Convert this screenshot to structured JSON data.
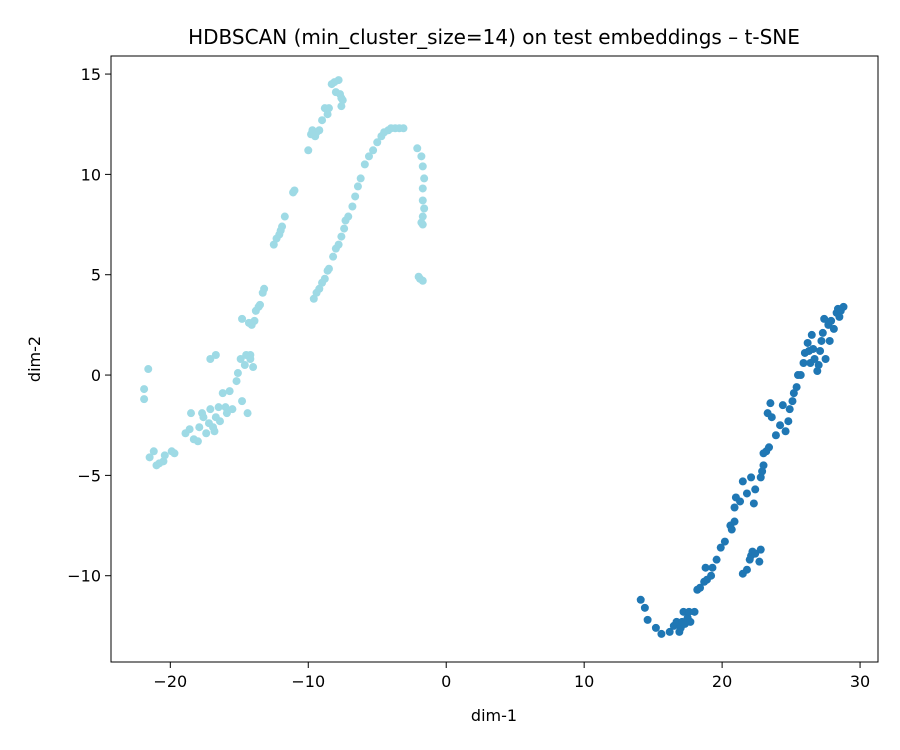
{
  "chart_data": {
    "type": "scatter",
    "title": "HDBSCAN (min_cluster_size=14) on test embeddings – t-SNE",
    "xlabel": "dim-1",
    "ylabel": "dim-2",
    "xlim": [
      -24.3,
      31.3
    ],
    "ylim": [
      -14.3,
      15.9
    ],
    "xticks": [
      -20,
      -10,
      0,
      10,
      20,
      30
    ],
    "yticks": [
      -10,
      -5,
      0,
      5,
      10,
      15
    ],
    "xtick_labels": [
      "−20",
      "−10",
      "0",
      "10",
      "20",
      "30"
    ],
    "ytick_labels": [
      "−10",
      "−5",
      "0",
      "5",
      "10",
      "15"
    ],
    "grid": false,
    "legend": "none",
    "series": [
      {
        "color": "#9edae5",
        "points": [
          [
            -21.9,
            -0.7
          ],
          [
            -21.9,
            -1.2
          ],
          [
            -21.6,
            0.3
          ],
          [
            -21.5,
            -4.1
          ],
          [
            -21.2,
            -3.8
          ],
          [
            -21.0,
            -4.5
          ],
          [
            -20.8,
            -4.4
          ],
          [
            -20.5,
            -4.3
          ],
          [
            -20.4,
            -4.0
          ],
          [
            -19.9,
            -3.8
          ],
          [
            -19.7,
            -3.9
          ],
          [
            -18.9,
            -2.9
          ],
          [
            -18.6,
            -2.7
          ],
          [
            -18.5,
            -1.9
          ],
          [
            -18.3,
            -3.2
          ],
          [
            -18.0,
            -3.3
          ],
          [
            -17.9,
            -2.6
          ],
          [
            -17.7,
            -1.9
          ],
          [
            -17.6,
            -2.1
          ],
          [
            -17.4,
            -2.9
          ],
          [
            -17.2,
            -2.4
          ],
          [
            -17.1,
            -1.7
          ],
          [
            -16.9,
            -2.6
          ],
          [
            -16.8,
            -2.8
          ],
          [
            -16.7,
            -2.1
          ],
          [
            -16.5,
            -1.6
          ],
          [
            -16.4,
            -2.3
          ],
          [
            -16.2,
            -0.9
          ],
          [
            -16.0,
            -1.6
          ],
          [
            -15.9,
            -1.9
          ],
          [
            -15.7,
            -0.8
          ],
          [
            -15.5,
            -1.7
          ],
          [
            -15.2,
            -0.3
          ],
          [
            -15.1,
            0.1
          ],
          [
            -14.8,
            -1.3
          ],
          [
            -14.6,
            0.5
          ],
          [
            -14.4,
            -1.9
          ],
          [
            -14.2,
            0.8
          ],
          [
            -14.0,
            0.4
          ],
          [
            -17.1,
            0.8
          ],
          [
            -16.7,
            1.0
          ],
          [
            -14.9,
            0.8
          ],
          [
            -14.5,
            1.0
          ],
          [
            -14.2,
            1.0
          ],
          [
            -14.8,
            2.8
          ],
          [
            -14.3,
            2.6
          ],
          [
            -14.1,
            2.5
          ],
          [
            -13.9,
            2.7
          ],
          [
            -13.8,
            3.2
          ],
          [
            -13.6,
            3.4
          ],
          [
            -13.5,
            3.5
          ],
          [
            -13.3,
            4.1
          ],
          [
            -13.2,
            4.3
          ],
          [
            -12.5,
            6.5
          ],
          [
            -12.3,
            6.8
          ],
          [
            -12.1,
            7.0
          ],
          [
            -12.0,
            7.2
          ],
          [
            -11.9,
            7.4
          ],
          [
            -11.7,
            7.9
          ],
          [
            -11.1,
            9.1
          ],
          [
            -11.0,
            9.2
          ],
          [
            -10.0,
            11.2
          ],
          [
            -9.8,
            12.0
          ],
          [
            -9.7,
            12.2
          ],
          [
            -9.5,
            11.9
          ],
          [
            -9.4,
            12.1
          ],
          [
            -9.2,
            12.2
          ],
          [
            -9.0,
            12.7
          ],
          [
            -8.8,
            13.3
          ],
          [
            -8.6,
            13.0
          ],
          [
            -8.5,
            13.3
          ],
          [
            -8.3,
            14.5
          ],
          [
            -8.1,
            14.6
          ],
          [
            -8.0,
            14.1
          ],
          [
            -7.8,
            14.7
          ],
          [
            -7.7,
            14.0
          ],
          [
            -7.6,
            13.8
          ],
          [
            -7.5,
            13.7
          ],
          [
            -7.6,
            13.4
          ],
          [
            -9.6,
            3.8
          ],
          [
            -9.4,
            4.1
          ],
          [
            -9.2,
            4.3
          ],
          [
            -9.0,
            4.6
          ],
          [
            -8.8,
            4.8
          ],
          [
            -8.6,
            5.2
          ],
          [
            -8.5,
            5.3
          ],
          [
            -8.2,
            5.9
          ],
          [
            -8.0,
            6.3
          ],
          [
            -7.8,
            6.5
          ],
          [
            -7.6,
            6.9
          ],
          [
            -7.4,
            7.3
          ],
          [
            -7.3,
            7.7
          ],
          [
            -7.1,
            7.9
          ],
          [
            -6.8,
            8.4
          ],
          [
            -6.6,
            8.9
          ],
          [
            -6.4,
            9.4
          ],
          [
            -6.2,
            9.8
          ],
          [
            -5.9,
            10.5
          ],
          [
            -5.6,
            10.9
          ],
          [
            -5.3,
            11.2
          ],
          [
            -5.0,
            11.6
          ],
          [
            -4.7,
            11.9
          ],
          [
            -4.5,
            12.1
          ],
          [
            -4.2,
            12.2
          ],
          [
            -4.0,
            12.3
          ],
          [
            -3.7,
            12.3
          ],
          [
            -3.4,
            12.3
          ],
          [
            -3.1,
            12.3
          ],
          [
            -2.1,
            11.3
          ],
          [
            -1.8,
            10.9
          ],
          [
            -1.7,
            10.4
          ],
          [
            -1.6,
            9.8
          ],
          [
            -1.7,
            9.3
          ],
          [
            -1.7,
            8.7
          ],
          [
            -1.6,
            8.3
          ],
          [
            -1.7,
            7.9
          ],
          [
            -1.8,
            7.6
          ],
          [
            -1.7,
            7.5
          ],
          [
            -2.0,
            4.9
          ],
          [
            -1.9,
            4.8
          ],
          [
            -1.7,
            4.7
          ]
        ]
      },
      {
        "color": "#1f77b4",
        "points": [
          [
            14.1,
            -11.2
          ],
          [
            14.4,
            -11.6
          ],
          [
            14.6,
            -12.2
          ],
          [
            15.2,
            -12.6
          ],
          [
            15.6,
            -12.9
          ],
          [
            16.2,
            -12.8
          ],
          [
            16.5,
            -12.5
          ],
          [
            16.7,
            -12.3
          ],
          [
            16.9,
            -12.8
          ],
          [
            17.0,
            -12.6
          ],
          [
            17.1,
            -12.3
          ],
          [
            17.3,
            -12.4
          ],
          [
            17.2,
            -11.8
          ],
          [
            17.5,
            -12.1
          ],
          [
            17.6,
            -11.8
          ],
          [
            17.7,
            -12.3
          ],
          [
            18.0,
            -11.8
          ],
          [
            18.2,
            -10.7
          ],
          [
            18.4,
            -10.6
          ],
          [
            18.7,
            -10.3
          ],
          [
            18.8,
            -9.6
          ],
          [
            18.9,
            -10.2
          ],
          [
            19.2,
            -10.0
          ],
          [
            19.3,
            -9.6
          ],
          [
            19.6,
            -9.2
          ],
          [
            19.9,
            -8.6
          ],
          [
            20.2,
            -8.3
          ],
          [
            20.6,
            -7.5
          ],
          [
            20.7,
            -7.7
          ],
          [
            20.9,
            -7.3
          ],
          [
            20.9,
            -6.6
          ],
          [
            21.0,
            -6.1
          ],
          [
            21.3,
            -6.3
          ],
          [
            21.5,
            -5.3
          ],
          [
            21.8,
            -5.9
          ],
          [
            22.1,
            -5.1
          ],
          [
            22.3,
            -6.4
          ],
          [
            22.4,
            -5.7
          ],
          [
            22.8,
            -5.1
          ],
          [
            22.9,
            -4.8
          ],
          [
            23.0,
            -3.9
          ],
          [
            23.2,
            -3.8
          ],
          [
            23.0,
            -4.5
          ],
          [
            21.5,
            -9.9
          ],
          [
            21.8,
            -9.7
          ],
          [
            22.0,
            -9.2
          ],
          [
            22.1,
            -9.0
          ],
          [
            22.2,
            -8.8
          ],
          [
            22.4,
            -8.9
          ],
          [
            22.7,
            -9.3
          ],
          [
            22.8,
            -8.7
          ],
          [
            23.3,
            -1.9
          ],
          [
            23.5,
            -1.4
          ],
          [
            23.6,
            -2.1
          ],
          [
            23.4,
            -3.6
          ],
          [
            23.9,
            -3.0
          ],
          [
            24.2,
            -2.5
          ],
          [
            24.4,
            -1.5
          ],
          [
            24.6,
            -2.8
          ],
          [
            24.8,
            -2.3
          ],
          [
            24.9,
            -1.7
          ],
          [
            25.1,
            -1.3
          ],
          [
            25.2,
            -0.9
          ],
          [
            25.4,
            -0.6
          ],
          [
            25.5,
            0.0
          ],
          [
            25.7,
            0.0
          ],
          [
            25.9,
            0.6
          ],
          [
            26.0,
            1.1
          ],
          [
            26.2,
            1.6
          ],
          [
            26.3,
            1.2
          ],
          [
            26.4,
            0.6
          ],
          [
            26.5,
            2.0
          ],
          [
            26.6,
            1.3
          ],
          [
            26.7,
            0.8
          ],
          [
            26.9,
            0.2
          ],
          [
            27.0,
            0.5
          ],
          [
            27.1,
            1.2
          ],
          [
            27.2,
            1.7
          ],
          [
            27.3,
            2.1
          ],
          [
            27.4,
            2.8
          ],
          [
            27.5,
            0.8
          ],
          [
            27.7,
            2.5
          ],
          [
            27.8,
            1.7
          ],
          [
            27.9,
            2.7
          ],
          [
            28.1,
            2.3
          ],
          [
            28.3,
            3.1
          ],
          [
            28.4,
            3.3
          ],
          [
            28.6,
            3.2
          ],
          [
            28.8,
            3.4
          ],
          [
            28.5,
            2.9
          ]
        ]
      }
    ]
  }
}
